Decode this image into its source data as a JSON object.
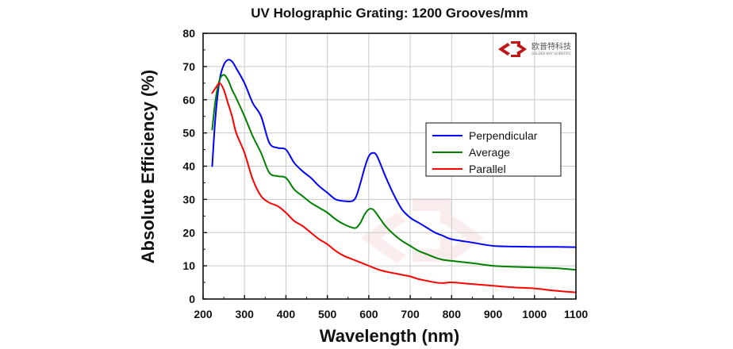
{
  "logo": {
    "cn_text": "欧普特科技",
    "en_text": "GOLDEN WAY SCIENTIFIC"
  },
  "chart_data": {
    "type": "line",
    "title": "UV Holographic Grating: 1200 Grooves/mm",
    "xlabel": "Wavelength (nm)",
    "ylabel": "Absolute Efficiency (%)",
    "xlim": [
      200,
      1100
    ],
    "ylim": [
      0,
      80
    ],
    "xticks": [
      200,
      300,
      400,
      500,
      600,
      700,
      800,
      900,
      1000,
      1100
    ],
    "yticks": [
      0,
      10,
      20,
      30,
      40,
      50,
      60,
      70,
      80
    ],
    "grid": true,
    "legend_position": "right-middle",
    "series": [
      {
        "name": "Perpendicular",
        "color": "#0000ff",
        "x": [
          222,
          230,
          240,
          250,
          260,
          270,
          280,
          300,
          320,
          340,
          360,
          380,
          400,
          420,
          440,
          460,
          480,
          500,
          520,
          540,
          560,
          570,
          580,
          590,
          600,
          610,
          620,
          640,
          660,
          680,
          700,
          720,
          740,
          760,
          780,
          800,
          850,
          900,
          950,
          1000,
          1050,
          1100
        ],
        "y": [
          40,
          55,
          66,
          70.5,
          72,
          71.5,
          69.5,
          65,
          59,
          55,
          47,
          45.5,
          45,
          41,
          38.5,
          36.5,
          34,
          32,
          30,
          29.5,
          29.5,
          31,
          35,
          39.5,
          43,
          44,
          43,
          37,
          31.5,
          27,
          24.5,
          23,
          21.5,
          20,
          19,
          18,
          17,
          16,
          15.8,
          15.7,
          15.7,
          15.6
        ]
      },
      {
        "name": "Average",
        "color": "#008000",
        "x": [
          222,
          230,
          240,
          250,
          260,
          270,
          280,
          300,
          320,
          340,
          360,
          380,
          400,
          420,
          440,
          460,
          480,
          500,
          520,
          540,
          560,
          570,
          580,
          590,
          600,
          610,
          620,
          640,
          660,
          680,
          700,
          720,
          740,
          760,
          780,
          800,
          850,
          900,
          950,
          1000,
          1050,
          1100
        ],
        "y": [
          51,
          60,
          66,
          67.5,
          66,
          63,
          60.5,
          55,
          49,
          44,
          38,
          37,
          36.5,
          33,
          31,
          29,
          27.5,
          26,
          24,
          22.5,
          21.5,
          21.5,
          23,
          25.5,
          27,
          27,
          25.5,
          22,
          19.5,
          17.5,
          16,
          14.5,
          13.5,
          12.5,
          11.8,
          11.5,
          10.8,
          10,
          9.7,
          9.5,
          9.3,
          8.8
        ]
      },
      {
        "name": "Parallel",
        "color": "#ff0000",
        "x": [
          222,
          230,
          240,
          250,
          260,
          270,
          280,
          300,
          320,
          340,
          360,
          380,
          400,
          420,
          440,
          460,
          480,
          500,
          520,
          540,
          560,
          580,
          600,
          620,
          640,
          660,
          680,
          700,
          720,
          740,
          760,
          780,
          800,
          850,
          900,
          950,
          1000,
          1050,
          1100
        ],
        "y": [
          62,
          63.5,
          65,
          63,
          59,
          55,
          50,
          44,
          36,
          31,
          29,
          28,
          26,
          23.5,
          22,
          20,
          18,
          16.5,
          14.5,
          13,
          12,
          11,
          10,
          9,
          8.3,
          7.8,
          7.3,
          6.8,
          6,
          5.5,
          5,
          4.8,
          5,
          4.5,
          4,
          3.5,
          3.2,
          2.5,
          2
        ]
      }
    ]
  }
}
